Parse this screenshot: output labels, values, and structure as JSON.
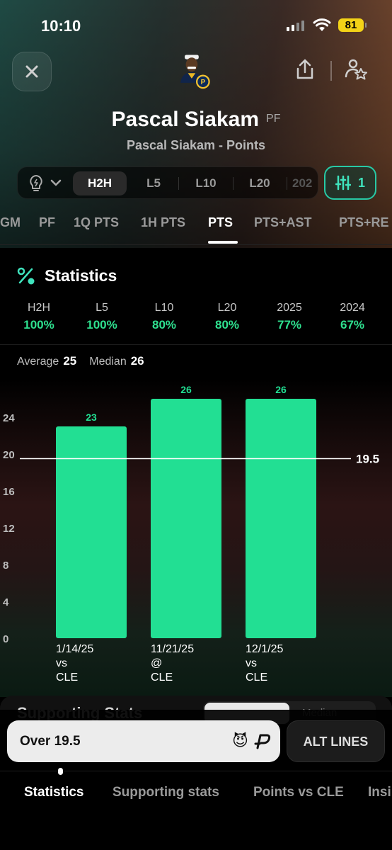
{
  "status_bar": {
    "time": "10:10",
    "battery": "81"
  },
  "header": {
    "player_name": "Pascal Siakam",
    "position": "PF",
    "subtitle": "Pascal Siakam - Points"
  },
  "filters": {
    "segments": [
      {
        "label": "H2H",
        "active": true
      },
      {
        "label": "L5",
        "active": false
      },
      {
        "label": "L10",
        "active": false
      },
      {
        "label": "L20",
        "active": false
      },
      {
        "label": "202",
        "active": false
      }
    ],
    "settings_count": "1"
  },
  "stat_tabs": [
    {
      "label": "GM"
    },
    {
      "label": "PF"
    },
    {
      "label": "1Q PTS"
    },
    {
      "label": "1H PTS"
    },
    {
      "label": "PTS",
      "active": true
    },
    {
      "label": "PTS+AST"
    },
    {
      "label": "PTS+RE"
    }
  ],
  "statistics": {
    "title": "Statistics",
    "hit_rates": [
      {
        "label": "H2H",
        "value": "100%"
      },
      {
        "label": "L5",
        "value": "100%"
      },
      {
        "label": "L10",
        "value": "80%"
      },
      {
        "label": "L20",
        "value": "80%"
      },
      {
        "label": "2025",
        "value": "77%"
      },
      {
        "label": "2024",
        "value": "67%"
      }
    ],
    "average_label": "Average",
    "average_value": "25",
    "median_label": "Median",
    "median_value": "26"
  },
  "chart_data": {
    "type": "bar",
    "categories": [
      "1/14/25 vs CLE",
      "11/21/25 @ CLE",
      "12/1/25 vs CLE"
    ],
    "category_lines": [
      [
        "1/14/25",
        "vs",
        "CLE"
      ],
      [
        "11/21/25",
        "@",
        "CLE"
      ],
      [
        "12/1/25",
        "vs",
        "CLE"
      ]
    ],
    "values": [
      23,
      26,
      26
    ],
    "y_ticks": [
      0,
      4,
      8,
      12,
      16,
      20,
      24
    ],
    "ylim": [
      0,
      28
    ],
    "line_value": 19.5,
    "line_label": "19.5",
    "bar_color": "#22df93"
  },
  "supporting_stats": {
    "title": "Supporting Stats",
    "toggle_right": "Median"
  },
  "bet": {
    "over_label": "Over 19.5",
    "emoji": "😈",
    "alt_lines_label": "ALT LINES"
  },
  "bottom_tabs": [
    {
      "label": "Statistics",
      "active": true
    },
    {
      "label": "Supporting stats"
    },
    {
      "label": "Points vs CLE"
    },
    {
      "label": "Insi"
    }
  ]
}
